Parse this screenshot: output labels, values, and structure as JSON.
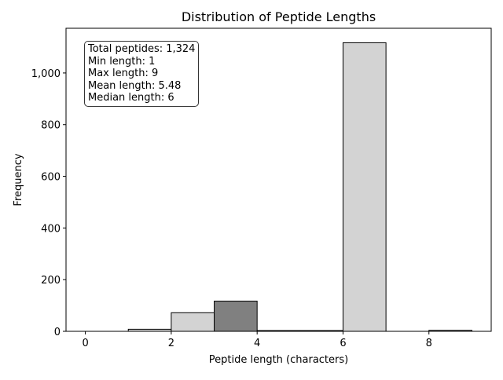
{
  "chart_data": {
    "type": "bar",
    "title": "Distribution of Peptide Lengths",
    "xlabel": "Peptide length (characters)",
    "ylabel": "Frequency",
    "xlim": [
      -0.45,
      9.45
    ],
    "ylim": [
      0,
      1173
    ],
    "x_ticks": [
      0,
      2,
      4,
      6,
      8
    ],
    "y_ticks": [
      0,
      200,
      400,
      600,
      800,
      1000
    ],
    "y_tick_labels": [
      "0",
      "200",
      "400",
      "600",
      "800",
      "1,000"
    ],
    "bins": [
      {
        "start": 0,
        "end": 1,
        "value": 0,
        "color": "#d3d3d3"
      },
      {
        "start": 1,
        "end": 2,
        "value": 8,
        "color": "#d3d3d3"
      },
      {
        "start": 2,
        "end": 3,
        "value": 72,
        "color": "#d3d3d3"
      },
      {
        "start": 3,
        "end": 4,
        "value": 117,
        "color": "#808080"
      },
      {
        "start": 4,
        "end": 5,
        "value": 3,
        "color": "#d3d3d3"
      },
      {
        "start": 5,
        "end": 6,
        "value": 3,
        "color": "#d3d3d3"
      },
      {
        "start": 6,
        "end": 7,
        "value": 1117,
        "color": "#d3d3d3"
      },
      {
        "start": 7,
        "end": 8,
        "value": 0,
        "color": "#d3d3d3"
      },
      {
        "start": 8,
        "end": 9,
        "value": 4,
        "color": "#d3d3d3"
      }
    ],
    "grid": false,
    "legend": "none",
    "stats_box": {
      "placement": "top-left",
      "lines": [
        "Total peptides: 1,324",
        "Min length: 1",
        "Max length: 9",
        "Mean length: 5.48",
        "Median length: 6"
      ]
    }
  }
}
